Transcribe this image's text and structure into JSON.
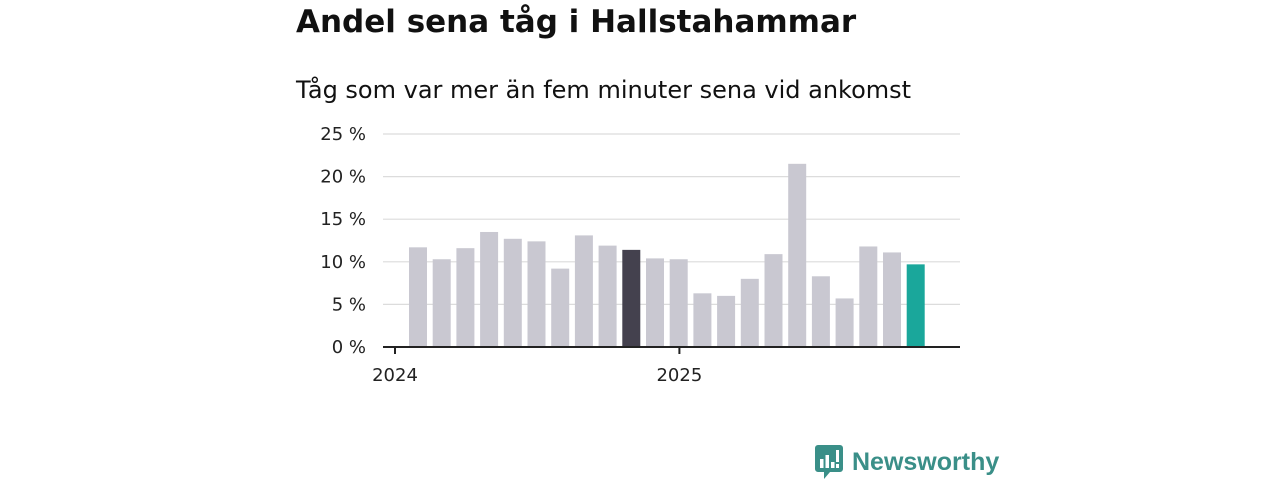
{
  "title": "Andel sena tåg i Hallstahammar",
  "subtitle": "Tåg som var mer än fem minuter sena vid ankomst",
  "brand": {
    "name": "Newsworthy",
    "logo_icon": "newsworthy-logo-icon"
  },
  "chart_data": {
    "type": "bar",
    "title": "Andel sena tåg i Hallstahammar",
    "subtitle": "Tåg som var mer än fem minuter sena vid ankomst",
    "categories": [
      "2024-01",
      "2024-02",
      "2024-03",
      "2024-04",
      "2024-05",
      "2024-06",
      "2024-07",
      "2024-08",
      "2024-09",
      "2024-10",
      "2024-11",
      "2024-12",
      "2025-01",
      "2025-02",
      "2025-03",
      "2025-04",
      "2025-05",
      "2025-06",
      "2025-07",
      "2025-08",
      "2025-09",
      "2025-10",
      "2025-11"
    ],
    "values": [
      11.7,
      10.3,
      11.6,
      13.5,
      12.7,
      12.4,
      9.2,
      13.1,
      11.9,
      11.4,
      10.4,
      10.3,
      6.3,
      6.0,
      8.0,
      10.9,
      21.5,
      8.3,
      5.7,
      11.8,
      11.1,
      9.7,
      null
    ],
    "highlight": {
      "2024-10": "#44414e",
      "2025-10": "#1aa79b"
    },
    "default_color": "#c9c8d1",
    "yticks": [
      0,
      5,
      10,
      15,
      20,
      25
    ],
    "ytick_labels": [
      "0 %",
      "5 %",
      "10 %",
      "15 %",
      "20 %",
      "25 %"
    ],
    "ylim": [
      0,
      25
    ],
    "xtick_labels": [
      {
        "category": "2024-01",
        "label": "2024"
      },
      {
        "category": "2025-01",
        "label": "2025"
      }
    ],
    "xlabel": "",
    "ylabel": "",
    "grid": true,
    "legend": "none"
  }
}
